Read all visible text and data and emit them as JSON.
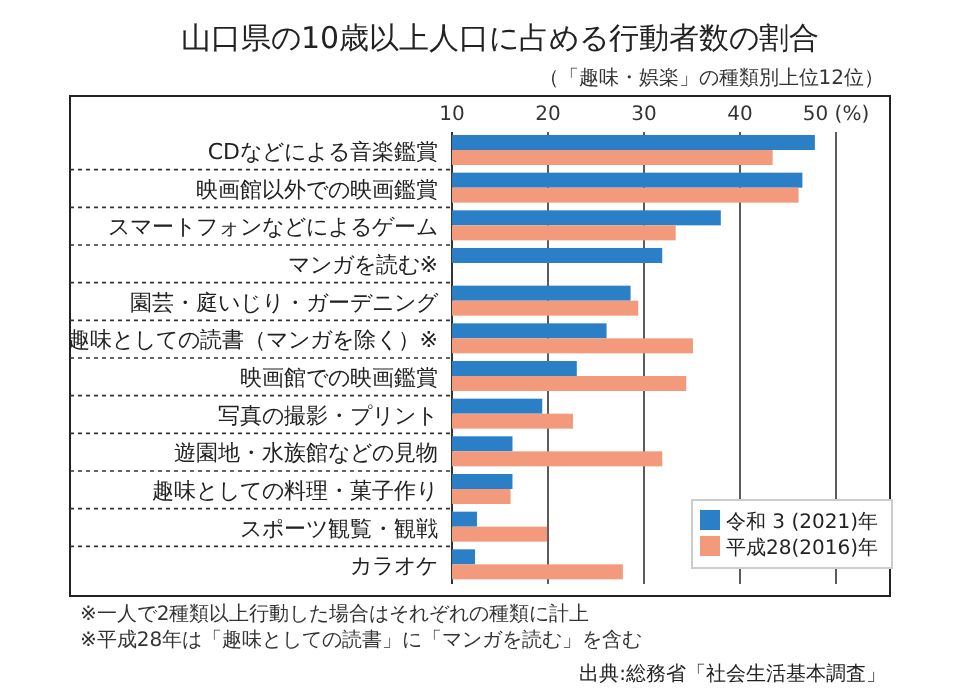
{
  "chart_data": {
    "type": "bar",
    "orientation": "horizontal",
    "title": "山口県の10歳以上人口に占める行動者数の割合",
    "subtitle": "（「趣味・娯楽」の種類別上位12位）",
    "categories": [
      "CDなどによる音楽鑑賞",
      "映画館以外での映画鑑賞",
      "スマートフォンなどによるゲーム",
      "マンガを読む※",
      "園芸・庭いじり・ガーデニング",
      "趣味としての読書（マンガを除く）※",
      "映画館での映画鑑賞",
      "写真の撮影・プリント",
      "遊園地・水族館などの見物",
      "趣味としての料理・菓子作り",
      "スポーツ観覧・観戦",
      "カラオケ"
    ],
    "series": [
      {
        "name": "令和 3 (2021)年",
        "color": "#2a7fc6",
        "values": [
          47.8,
          46.5,
          38.0,
          31.9,
          28.6,
          26.1,
          23.0,
          19.4,
          16.3,
          16.3,
          12.6,
          12.4
        ]
      },
      {
        "name": "平成28(2016)年",
        "color": "#f39a7c",
        "values": [
          43.4,
          46.1,
          33.3,
          null,
          29.4,
          35.1,
          34.4,
          22.6,
          31.9,
          16.1,
          19.9,
          27.8
        ]
      }
    ],
    "xlim": [
      10,
      50
    ],
    "xticks": [
      10,
      20,
      30,
      40,
      {
        "value": 50,
        "label": "50 (%)"
      }
    ],
    "grid": "x",
    "legend": "bottom right",
    "annotations": [
      "※一人で2種類以上行動した場合はそれぞれの種類に計上",
      "※平成28年は「趣味としての読書」に「マンガを読む」を含む",
      "出典:総務省「社会生活基本調査」"
    ]
  }
}
